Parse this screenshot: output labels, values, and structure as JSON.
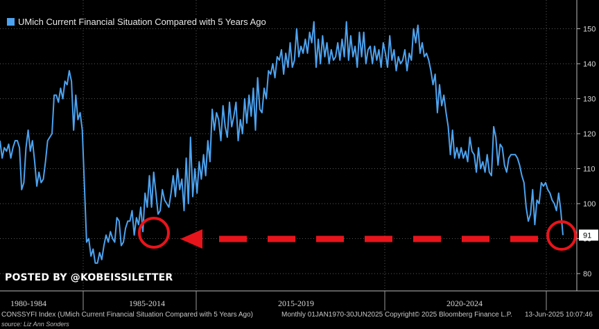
{
  "legend": {
    "label": "UMich Current Financial Situation Compared with 5 Years Ago",
    "color": "#4da3f0"
  },
  "watermark": "POSTED BY @KOBEISSILETTER",
  "footer": {
    "index": "CONSSYFI Index (UMich Current Financial Situation Compared with 5 Years Ago)",
    "range": "Monthly 01JAN1970-30JUN2025",
    "copyright": "Copyright© 2025 Bloomberg Finance L.P.",
    "date": "13-Jun-2025 10:07:46"
  },
  "source": "source: Liz Ann Sonders",
  "colors": {
    "series": "#4da3f0",
    "annotation": "#e8141b",
    "background": "#000000",
    "grid": "#5a5a5a"
  },
  "chart_data": {
    "type": "line",
    "title": "",
    "xlabel": "",
    "ylabel": "",
    "ylim": [
      78,
      153
    ],
    "yticks": [
      80,
      90,
      100,
      110,
      120,
      130,
      140,
      150
    ],
    "grid": true,
    "axis_side": "right",
    "last_value_label": "91",
    "x_period_labels": [
      "1980-1984",
      "1985-2014",
      "2015-2019",
      "2020-2024"
    ],
    "series": [
      {
        "name": "UMich Current Financial Situation Compared with 5 Years Ago",
        "values": [
          118,
          113,
          116,
          115,
          117,
          113,
          116,
          118,
          118,
          116,
          104,
          106,
          116,
          121,
          115,
          118,
          112,
          105,
          109,
          106,
          107,
          112,
          118,
          119,
          120,
          131,
          131,
          129,
          133,
          130,
          135,
          134,
          138,
          135,
          121,
          131,
          124,
          126,
          121,
          105,
          89,
          90,
          85,
          87,
          83,
          83,
          86,
          84,
          88,
          91,
          89,
          92,
          90,
          89,
          96,
          95,
          88,
          89,
          93,
          95,
          95,
          98,
          91,
          96,
          94,
          99,
          92,
          103,
          99,
          108,
          99,
          109,
          103,
          97,
          98,
          104,
          101,
          100,
          99,
          103,
          108,
          102,
          110,
          104,
          107,
          98,
          113,
          100,
          119,
          102,
          110,
          103,
          112,
          107,
          114,
          108,
          118,
          112,
          127,
          121,
          126,
          124,
          118,
          128,
          122,
          119,
          129,
          122,
          125,
          129,
          118,
          124,
          120,
          130,
          123,
          131,
          125,
          133,
          121,
          136,
          127,
          126,
          133,
          130,
          138,
          137,
          140,
          136,
          142,
          141,
          144,
          137,
          143,
          139,
          146,
          139,
          141,
          150,
          142,
          145,
          143,
          147,
          143,
          149,
          146,
          152,
          139,
          147,
          140,
          148,
          142,
          146,
          140,
          144,
          141,
          142,
          146,
          141,
          147,
          142,
          152,
          141,
          148,
          142,
          145,
          139,
          149,
          142,
          149,
          140,
          144,
          145,
          140,
          145,
          141,
          144,
          139,
          146,
          143,
          139,
          148,
          141,
          144,
          138,
          142,
          140,
          141,
          144,
          138,
          143,
          141,
          150,
          146,
          151,
          143,
          146,
          142,
          143,
          141,
          138,
          134,
          137,
          126,
          134,
          128,
          131,
          126,
          122,
          114,
          121,
          113,
          116,
          113,
          116,
          113,
          115,
          112,
          119,
          115,
          114,
          109,
          116,
          110,
          112,
          109,
          114,
          109,
          108,
          122,
          119,
          111,
          117,
          116,
          111,
          109,
          113,
          114,
          114,
          114,
          113,
          111,
          108,
          106,
          99,
          95,
          97,
          104,
          94,
          101,
          100,
          106,
          105,
          106,
          104,
          103,
          101,
          100,
          98,
          103,
          98,
          91
        ]
      }
    ]
  }
}
